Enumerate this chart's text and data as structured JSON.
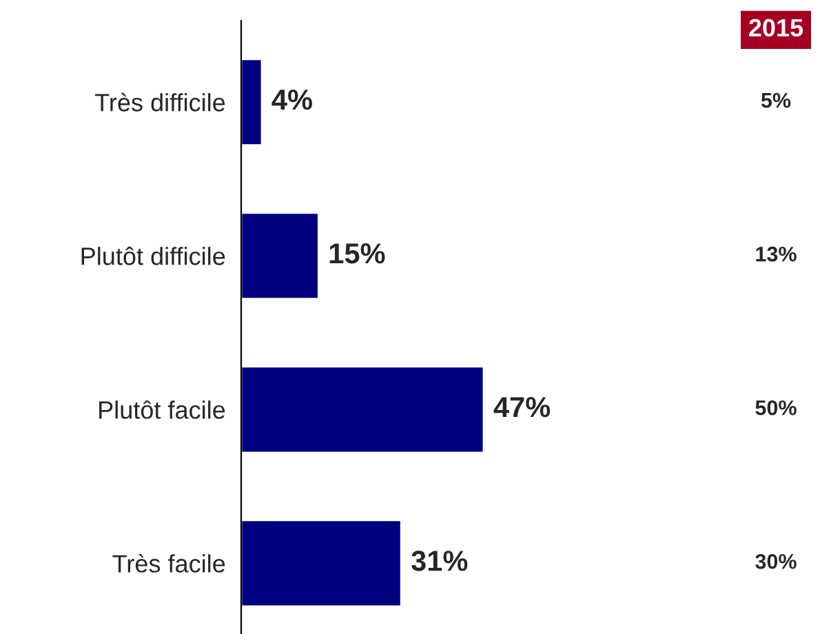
{
  "chart_data": {
    "type": "bar",
    "orientation": "horizontal",
    "categories": [
      "Très difficile",
      "Plutôt difficile",
      "Plutôt facile",
      "Très facile"
    ],
    "values": [
      4,
      15,
      47,
      31
    ],
    "color": "#000080",
    "value_labels": [
      "4%",
      "15%",
      "47%",
      "31%"
    ],
    "tick_labels": "y",
    "annotations": [
      "2015",
      "5%",
      "13%",
      "50%",
      "30%"
    ]
  }
}
